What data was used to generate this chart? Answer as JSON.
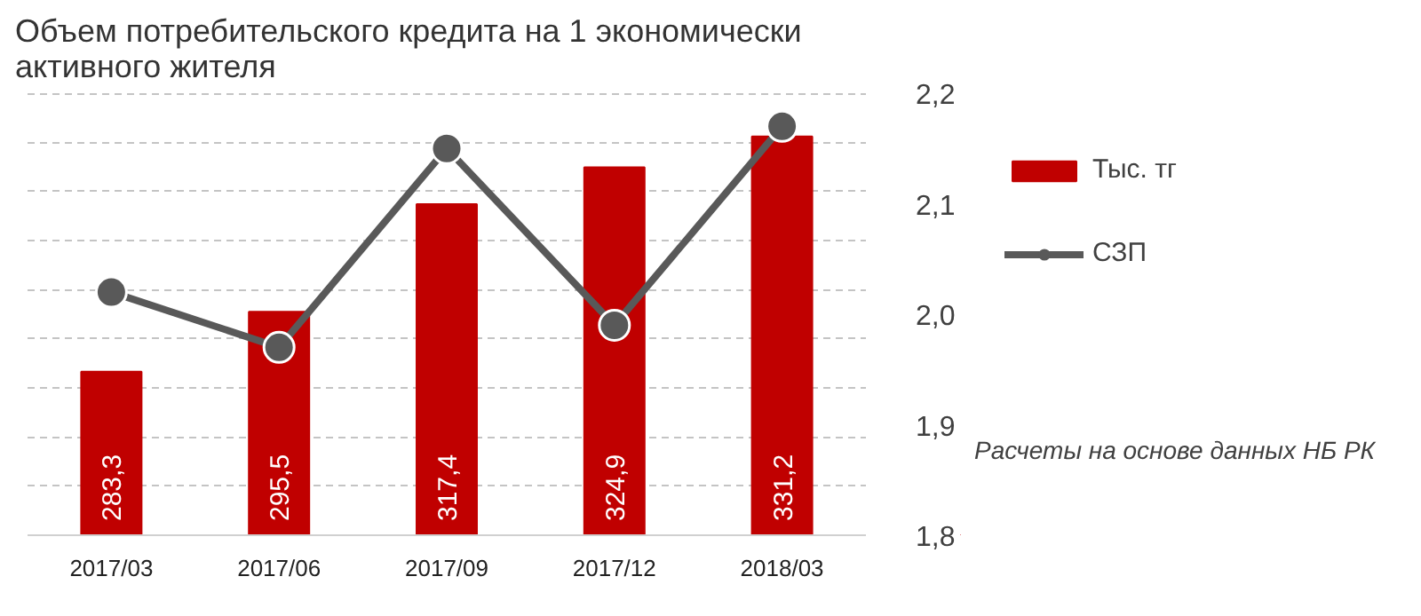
{
  "chart_data": {
    "type": "bar",
    "title": "Объем потребительского кредита на 1 экономически активного жителя",
    "categories": [
      "2017/03",
      "2017/06",
      "2017/09",
      "2017/12",
      "2018/03"
    ],
    "series": [
      {
        "name": "Тыс. тг",
        "color": "#c00000",
        "values": [
          283.3,
          295.5,
          317.4,
          324.9,
          331.2
        ],
        "value_labels": [
          "283,3",
          "295,5",
          "317,4",
          "324,9",
          "331,2"
        ]
      },
      {
        "name": "СЗП",
        "type": "line",
        "axis": "y2",
        "color": "#595959",
        "marker": "circle",
        "values": [
          2.02,
          1.97,
          2.15,
          1.99,
          2.17
        ]
      }
    ],
    "ylim": [
      250,
      340
    ],
    "yticks": [
      {
        "value": 250,
        "label": null
      },
      {
        "value": 260,
        "label": null
      },
      {
        "value": 270,
        "label": null
      },
      {
        "value": 280,
        "label": null
      },
      {
        "value": 290,
        "label": null
      },
      {
        "value": 300,
        "label": null
      },
      {
        "value": 310,
        "label": null
      },
      {
        "value": 320,
        "label": null
      },
      {
        "value": 330,
        "label": null
      },
      {
        "value": 340,
        "label": null
      }
    ],
    "y2lim": [
      1.8,
      2.2
    ],
    "y2ticks": [
      {
        "value": 1.8,
        "label": "1,8"
      },
      {
        "value": 1.9,
        "label": "1,9"
      },
      {
        "value": 2.0,
        "label": "2,0"
      },
      {
        "value": 2.1,
        "label": "2,1"
      },
      {
        "value": 2.2,
        "label": "2,2"
      }
    ],
    "grid": "y",
    "legend": "right",
    "annotations": [
      "Расчеты на основе данных НБ РК"
    ]
  }
}
